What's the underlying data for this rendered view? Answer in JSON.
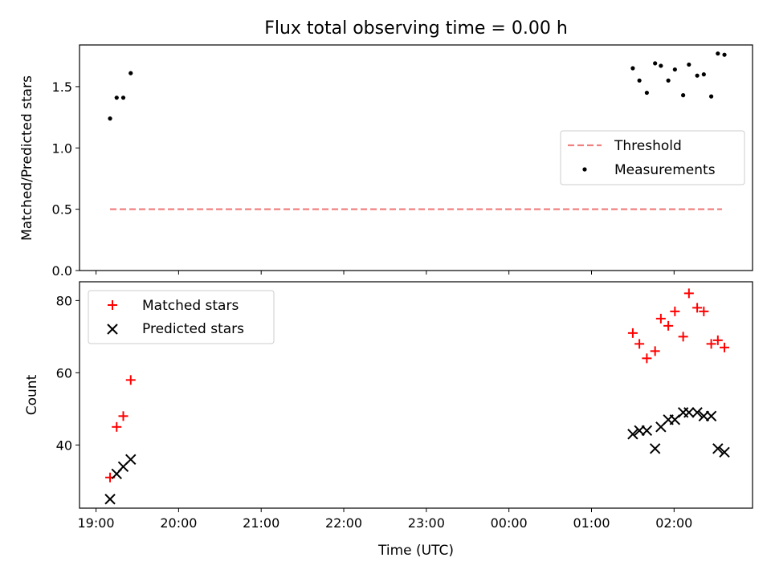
{
  "chart_data": {
    "title": "Flux total observing time = 0.00 h",
    "xlabel": "Time (UTC)",
    "x_tick_labels": [
      "19:00",
      "20:00",
      "21:00",
      "22:00",
      "23:00",
      "00:00",
      "01:00",
      "02:00"
    ],
    "x_tick_hours": [
      19,
      20,
      21,
      22,
      23,
      24,
      25,
      26
    ],
    "xlim_hours": [
      18.8,
      26.95
    ],
    "panels": [
      {
        "type": "scatter",
        "ylabel": "Matched/Predicted stars",
        "ylim": [
          0,
          1.84
        ],
        "y_ticks": [
          0.0,
          0.5,
          1.0,
          1.5
        ],
        "y_tick_labels": [
          "0.0",
          "0.5",
          "1.0",
          "1.5"
        ],
        "legend_position": "center-right",
        "series": [
          {
            "name": "Threshold",
            "kind": "dashed-line",
            "color": "#f08080",
            "x_hours": [
              19.17,
              26.58
            ],
            "y": [
              0.5,
              0.5
            ]
          },
          {
            "name": "Measurements",
            "kind": "dot",
            "color": "#000000",
            "x_hours": [
              19.17,
              19.25,
              19.33,
              19.42,
              25.5,
              25.58,
              25.67,
              25.77,
              25.84,
              25.93,
              26.01,
              26.11,
              26.18,
              26.28,
              26.36,
              26.45,
              26.53,
              26.61
            ],
            "y": [
              1.24,
              1.41,
              1.41,
              1.61,
              1.65,
              1.55,
              1.45,
              1.69,
              1.67,
              1.55,
              1.64,
              1.43,
              1.68,
              1.59,
              1.6,
              1.42,
              1.77,
              1.76
            ]
          }
        ]
      },
      {
        "type": "scatter",
        "ylabel": "Count",
        "ylim": [
          22.5,
          85.2
        ],
        "y_ticks": [
          40,
          60,
          80
        ],
        "y_tick_labels": [
          "40",
          "60",
          "80"
        ],
        "legend_position": "upper-left",
        "series": [
          {
            "name": "Matched stars",
            "kind": "plus",
            "color": "#ff0000",
            "x_hours": [
              19.17,
              19.25,
              19.33,
              19.42,
              25.5,
              25.58,
              25.67,
              25.77,
              25.84,
              25.93,
              26.01,
              26.11,
              26.18,
              26.28,
              26.36,
              26.45,
              26.53,
              26.61
            ],
            "y": [
              31,
              45,
              48,
              58,
              71,
              68,
              64,
              66,
              75,
              73,
              77,
              70,
              82,
              78,
              77,
              68,
              69,
              67
            ]
          },
          {
            "name": "Predicted stars",
            "kind": "x",
            "color": "#000000",
            "x_hours": [
              19.17,
              19.25,
              19.33,
              19.42,
              25.5,
              25.58,
              25.67,
              25.77,
              25.84,
              25.93,
              26.01,
              26.11,
              26.18,
              26.28,
              26.36,
              26.45,
              26.53,
              26.61
            ],
            "y": [
              25,
              32,
              34,
              36,
              43,
              44,
              44,
              39,
              45,
              47,
              47,
              49,
              49,
              49,
              48,
              48,
              39,
              38
            ]
          }
        ]
      }
    ]
  }
}
